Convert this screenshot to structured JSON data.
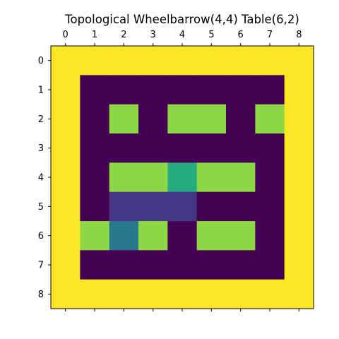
{
  "chart_data": {
    "type": "heatmap",
    "title": "Topological Wheelbarrow(4,4) Table(6,2)",
    "x_ticks": [
      0,
      1,
      2,
      3,
      4,
      5,
      6,
      7,
      8
    ],
    "y_ticks": [
      0,
      1,
      2,
      3,
      4,
      5,
      6,
      7,
      8
    ],
    "x_axis_position": "top",
    "colormap": "viridis",
    "vmin": 0,
    "vmax": 1,
    "grid": false,
    "legend": "none",
    "values": [
      [
        1,
        1,
        1,
        1,
        1,
        1,
        1,
        1,
        1
      ],
      [
        1,
        0,
        0,
        0,
        0,
        0,
        0,
        0,
        1
      ],
      [
        1,
        0,
        0.85,
        0,
        0.85,
        0.85,
        0,
        0.85,
        1
      ],
      [
        1,
        0,
        0,
        0,
        0,
        0,
        0,
        0,
        1
      ],
      [
        1,
        0,
        0.85,
        0.85,
        0.6,
        0.85,
        0.85,
        0,
        1
      ],
      [
        1,
        0,
        0.15,
        0.15,
        0.15,
        0,
        0,
        0,
        1
      ],
      [
        1,
        0.85,
        0.4,
        0.85,
        0,
        0.85,
        0.85,
        0,
        1
      ],
      [
        1,
        0,
        0,
        0,
        0,
        0,
        0,
        0,
        1
      ],
      [
        1,
        1,
        1,
        1,
        1,
        1,
        1,
        1,
        1
      ]
    ]
  }
}
